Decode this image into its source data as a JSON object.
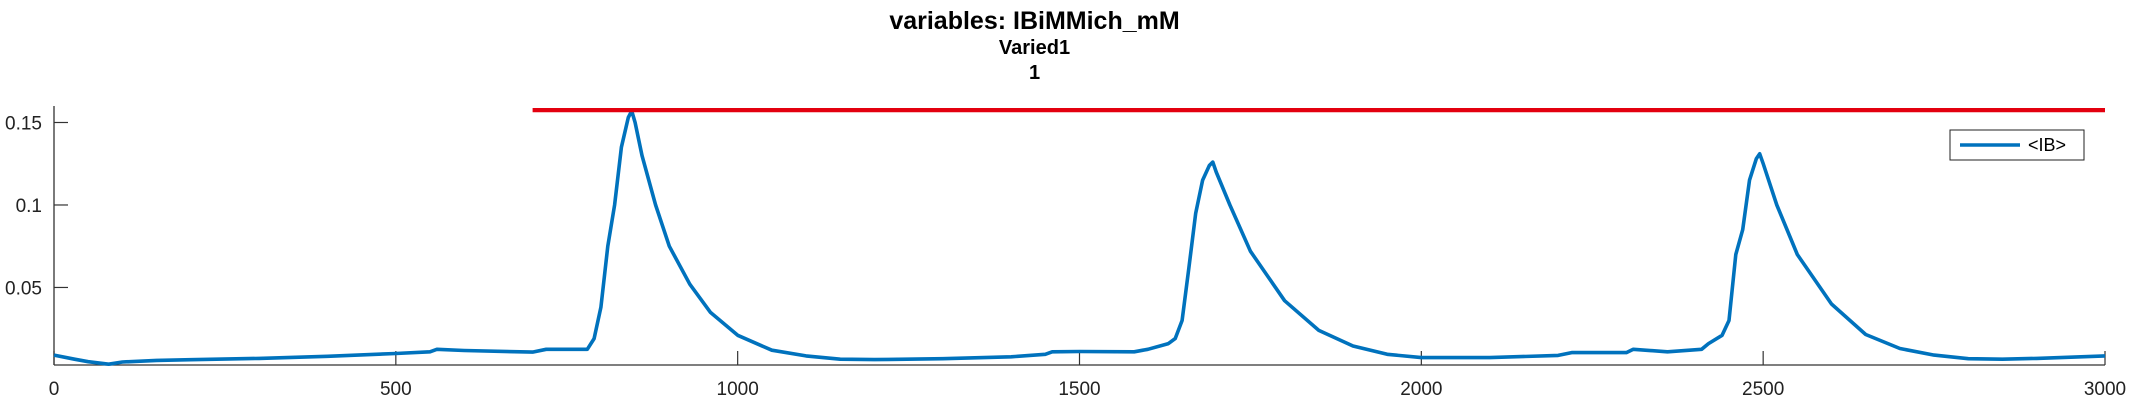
{
  "chart_data": {
    "type": "line",
    "title": "variables: IBiMMich_mM",
    "subtitle_lines": [
      "Varied1",
      "1"
    ],
    "xlabel": "",
    "ylabel": "",
    "xlim": [
      0,
      3000
    ],
    "ylim": [
      0.003,
      0.16
    ],
    "x_ticks": [
      0,
      500,
      1000,
      1500,
      2000,
      2500,
      3000
    ],
    "x_tick_labels": [
      "0",
      "500",
      "1000",
      "1500",
      "2000",
      "2500",
      "3000"
    ],
    "y_ticks": [
      0.05,
      0.1,
      0.15
    ],
    "y_tick_labels": [
      "0.05",
      "0.1",
      "0.15"
    ],
    "grid": false,
    "legend": {
      "placement": "top-right",
      "entries": [
        "<IB>"
      ]
    },
    "series": [
      {
        "name": "<IB>",
        "color": "#0072BD",
        "x": [
          0,
          30,
          50,
          80,
          100,
          150,
          200,
          300,
          400,
          500,
          550,
          560,
          600,
          700,
          720,
          780,
          790,
          800,
          810,
          820,
          830,
          840,
          845,
          850,
          860,
          880,
          900,
          930,
          960,
          1000,
          1050,
          1100,
          1150,
          1200,
          1300,
          1400,
          1450,
          1460,
          1500,
          1580,
          1600,
          1630,
          1640,
          1650,
          1660,
          1670,
          1680,
          1690,
          1695,
          1700,
          1720,
          1750,
          1800,
          1850,
          1900,
          1950,
          2000,
          2100,
          2200,
          2220,
          2300,
          2310,
          2360,
          2410,
          2420,
          2440,
          2450,
          2460,
          2470,
          2480,
          2490,
          2495,
          2500,
          2520,
          2550,
          2600,
          2650,
          2700,
          2750,
          2800,
          2850,
          2900,
          3000
        ],
        "y": [
          0.009,
          0.0065,
          0.005,
          0.0035,
          0.0048,
          0.0058,
          0.0062,
          0.007,
          0.0083,
          0.01,
          0.011,
          0.0125,
          0.0118,
          0.0108,
          0.0125,
          0.0125,
          0.019,
          0.038,
          0.075,
          0.1,
          0.135,
          0.153,
          0.157,
          0.15,
          0.13,
          0.1,
          0.075,
          0.052,
          0.035,
          0.021,
          0.012,
          0.0085,
          0.0065,
          0.0063,
          0.0068,
          0.008,
          0.0095,
          0.011,
          0.0112,
          0.011,
          0.0125,
          0.016,
          0.019,
          0.03,
          0.062,
          0.095,
          0.115,
          0.124,
          0.126,
          0.12,
          0.1,
          0.072,
          0.042,
          0.024,
          0.0145,
          0.0095,
          0.0075,
          0.0075,
          0.0088,
          0.0105,
          0.0105,
          0.0125,
          0.011,
          0.0125,
          0.016,
          0.021,
          0.03,
          0.07,
          0.085,
          0.115,
          0.128,
          0.131,
          0.125,
          0.1,
          0.07,
          0.04,
          0.0215,
          0.013,
          0.009,
          0.0068,
          0.0065,
          0.007,
          0.0085
        ]
      },
      {
        "name": "",
        "color": "#E3000F",
        "x": [
          700,
          3000
        ],
        "y": [
          0.1575,
          0.1575
        ]
      }
    ]
  }
}
